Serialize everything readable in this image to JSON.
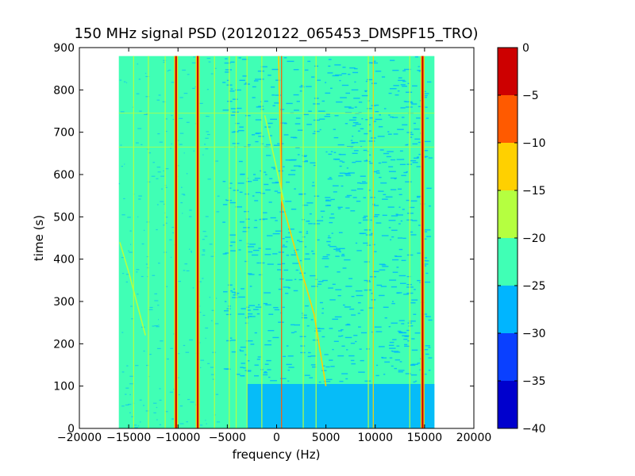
{
  "chart_data": {
    "type": "heatmap",
    "title": "150 MHz signal PSD (20120122_065453_DMSPF15_TRO)",
    "xlabel": "frequency (Hz)",
    "ylabel": "time (s)",
    "xlim": [
      -20000,
      20000
    ],
    "ylim": [
      0,
      900
    ],
    "x_ticks": [
      -20000,
      -15000,
      -10000,
      -5000,
      0,
      5000,
      10000,
      15000,
      20000
    ],
    "x_tick_labels": [
      "−20000",
      "−15000",
      "−10000",
      "−5000",
      "0",
      "5000",
      "10000",
      "15000",
      "20000"
    ],
    "y_ticks": [
      0,
      100,
      200,
      300,
      400,
      500,
      600,
      700,
      800,
      900
    ],
    "y_tick_labels": [
      "0",
      "100",
      "200",
      "300",
      "400",
      "500",
      "600",
      "700",
      "800",
      "900"
    ],
    "data_extent": {
      "freq_hz": [
        -16000,
        16000
      ],
      "time_s": [
        0,
        880
      ]
    },
    "background_level_db": -22.5,
    "low_time_band": {
      "time_s": [
        0,
        105
      ],
      "freq_hz": [
        -3000,
        16000
      ],
      "level_db": -27.5
    },
    "colorbar": {
      "range": [
        -40,
        0
      ],
      "ticks": [
        0,
        -5,
        -10,
        -15,
        -20,
        -25,
        -30,
        -35,
        -40
      ],
      "tick_labels": [
        "0",
        "−5",
        "−10",
        "−15",
        "−20",
        "−25",
        "−30",
        "−35",
        "−40"
      ],
      "levels": [
        {
          "from": -40,
          "to": -35,
          "color": "#0000cd"
        },
        {
          "from": -35,
          "to": -30,
          "color": "#0a40ff"
        },
        {
          "from": -30,
          "to": -25,
          "color": "#00b5ff"
        },
        {
          "from": -25,
          "to": -20,
          "color": "#40ffb5"
        },
        {
          "from": -20,
          "to": -15,
          "color": "#b5ff40"
        },
        {
          "from": -15,
          "to": -10,
          "color": "#ffd000"
        },
        {
          "from": -10,
          "to": -5,
          "color": "#ff5a00"
        },
        {
          "from": -5,
          "to": 0,
          "color": "#cd0000"
        }
      ]
    },
    "vertical_lines": [
      {
        "freq_hz": -14500,
        "level_db": -17.5
      },
      {
        "freq_hz": -13000,
        "level_db": -17.5
      },
      {
        "freq_hz": -11300,
        "level_db": -17.5
      },
      {
        "freq_hz": -10200,
        "level_db": -2.5
      },
      {
        "freq_hz": -8000,
        "level_db": -2.5
      },
      {
        "freq_hz": -6300,
        "level_db": -17.5
      },
      {
        "freq_hz": -4800,
        "level_db": -17.5
      },
      {
        "freq_hz": -4100,
        "level_db": -17.5
      },
      {
        "freq_hz": -3000,
        "level_db": -17.5
      },
      {
        "freq_hz": -1500,
        "level_db": -17.5
      },
      {
        "freq_hz": 500,
        "level_db": -7.5
      },
      {
        "freq_hz": 2700,
        "level_db": -17.5
      },
      {
        "freq_hz": 4000,
        "level_db": -17.5
      },
      {
        "freq_hz": 9300,
        "level_db": -17.5
      },
      {
        "freq_hz": 9800,
        "level_db": -12.5
      },
      {
        "freq_hz": 13500,
        "level_db": -17.5
      },
      {
        "freq_hz": 14800,
        "level_db": -2.5
      }
    ],
    "drifting_traces": [
      {
        "level_db": -12.5,
        "points": [
          [
            200,
            880
          ],
          [
            500,
            540
          ],
          [
            1800,
            430
          ],
          [
            3800,
            270
          ],
          [
            5000,
            100
          ]
        ]
      },
      {
        "level_db": -17.5,
        "points": [
          [
            -15900,
            440
          ],
          [
            -15000,
            370
          ],
          [
            -13300,
            220
          ]
        ]
      },
      {
        "level_db": -17.5,
        "points": [
          [
            -1200,
            740
          ],
          [
            700,
            540
          ]
        ]
      }
    ],
    "horizontal_lines": [
      {
        "time_s": 665,
        "level_db": -17.5
      },
      {
        "time_s": 745,
        "level_db": -17.5
      }
    ]
  }
}
